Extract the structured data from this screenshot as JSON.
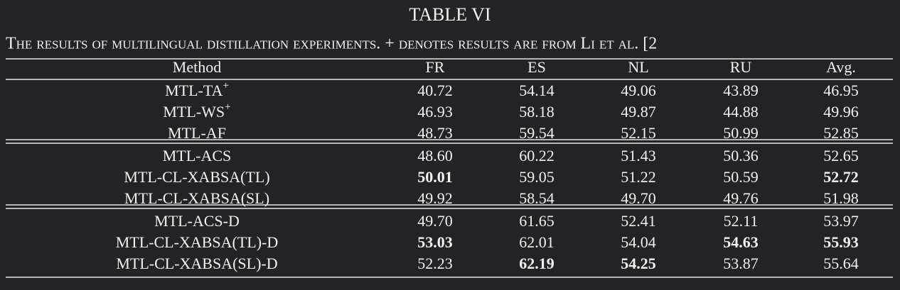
{
  "title": "TABLE VI",
  "caption": "The results of multilingual distillation experiments. + denotes results are from Li et al. [2",
  "table": {
    "header": [
      "Method",
      "FR",
      "ES",
      "NL",
      "RU",
      "Avg."
    ],
    "groups": [
      [
        {
          "method": "MTL-TA",
          "sup": "+",
          "values": [
            "40.72",
            "54.14",
            "49.06",
            "43.89",
            "46.95"
          ],
          "bold": []
        },
        {
          "method": "MTL-WS",
          "sup": "+",
          "values": [
            "46.93",
            "58.18",
            "49.87",
            "44.88",
            "49.96"
          ],
          "bold": []
        },
        {
          "method": "MTL-AF",
          "values": [
            "48.73",
            "59.54",
            "52.15",
            "50.99",
            "52.85"
          ],
          "bold": []
        }
      ],
      [
        {
          "method": "MTL-ACS",
          "values": [
            "48.60",
            "60.22",
            "51.43",
            "50.36",
            "52.65"
          ],
          "bold": []
        },
        {
          "method": "MTL-CL-XABSA(TL)",
          "values": [
            "50.01",
            "59.05",
            "51.22",
            "50.59",
            "52.72"
          ],
          "bold": [
            0,
            4
          ]
        },
        {
          "method": "MTL-CL-XABSA(SL)",
          "values": [
            "49.92",
            "58.54",
            "49.70",
            "49.76",
            "51.98"
          ],
          "bold": []
        }
      ],
      [
        {
          "method": "MTL-ACS-D",
          "values": [
            "49.70",
            "61.65",
            "52.41",
            "52.11",
            "53.97"
          ],
          "bold": []
        },
        {
          "method": "MTL-CL-XABSA(TL)-D",
          "values": [
            "53.03",
            "62.01",
            "54.04",
            "54.63",
            "55.93"
          ],
          "bold": [
            0,
            3,
            4
          ]
        },
        {
          "method": "MTL-CL-XABSA(SL)-D",
          "values": [
            "52.23",
            "62.19",
            "54.25",
            "53.87",
            "55.64"
          ],
          "bold": [
            1,
            2
          ]
        }
      ]
    ]
  }
}
